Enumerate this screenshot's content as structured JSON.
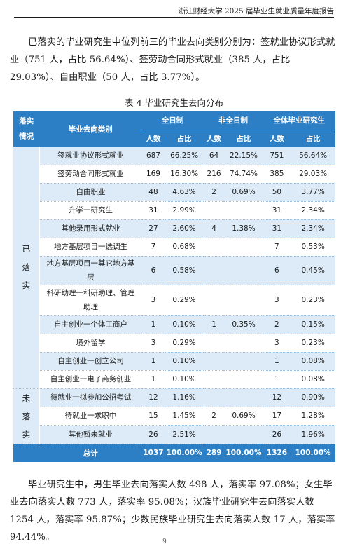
{
  "header": {
    "title": "浙江财经大学 2025 届毕业生就业质量年度报告"
  },
  "intro": "已落实的毕业研究生中位列前三的毕业去向类别分别为：签就业协议形式就业（751 人，占比 56.64%）、签劳动合同形式就业（385 人，占比 29.03%）、自由职业（50 人，占比 3.77%）。",
  "table": {
    "caption": "表 4 毕业研究生去向分布",
    "headers": {
      "status": "落实\n情况",
      "category": "毕业去向类别",
      "fulltime": "全日制",
      "parttime": "非全日制",
      "all": "全体毕业研究生",
      "count": "人数",
      "ratio": "占比"
    },
    "groups": [
      {
        "label": "已\n落\n实",
        "rows": [
          {
            "cat": "签就业协议形式就业",
            "ft_n": "687",
            "ft_p": "66.25%",
            "pt_n": "64",
            "pt_p": "22.15%",
            "all_n": "751",
            "all_p": "56.64%"
          },
          {
            "cat": "签劳动合同形式就业",
            "ft_n": "169",
            "ft_p": "16.30%",
            "pt_n": "216",
            "pt_p": "74.74%",
            "all_n": "385",
            "all_p": "29.03%"
          },
          {
            "cat": "自由职业",
            "ft_n": "48",
            "ft_p": "4.63%",
            "pt_n": "2",
            "pt_p": "0.69%",
            "all_n": "50",
            "all_p": "3.77%"
          },
          {
            "cat": "升学一研究生",
            "ft_n": "31",
            "ft_p": "2.99%",
            "pt_n": "",
            "pt_p": "",
            "all_n": "31",
            "all_p": "2.34%"
          },
          {
            "cat": "其他录用形式就业",
            "ft_n": "27",
            "ft_p": "2.60%",
            "pt_n": "4",
            "pt_p": "1.38%",
            "all_n": "31",
            "all_p": "2.34%"
          },
          {
            "cat": "地方基层项目一选调生",
            "ft_n": "7",
            "ft_p": "0.68%",
            "pt_n": "",
            "pt_p": "",
            "all_n": "7",
            "all_p": "0.53%"
          },
          {
            "cat": "地方基层项目一其它地方基层",
            "ft_n": "6",
            "ft_p": "0.58%",
            "pt_n": "",
            "pt_p": "",
            "all_n": "6",
            "all_p": "0.45%"
          },
          {
            "cat": "科研助理一科研助理、管理助理",
            "ft_n": "3",
            "ft_p": "0.29%",
            "pt_n": "",
            "pt_p": "",
            "all_n": "3",
            "all_p": "0.23%"
          },
          {
            "cat": "自主创业一个体工商户",
            "ft_n": "1",
            "ft_p": "0.10%",
            "pt_n": "1",
            "pt_p": "0.35%",
            "all_n": "2",
            "all_p": "0.15%"
          },
          {
            "cat": "境外留学",
            "ft_n": "3",
            "ft_p": "0.29%",
            "pt_n": "",
            "pt_p": "",
            "all_n": "3",
            "all_p": "0.23%"
          },
          {
            "cat": "自主创业一创立公司",
            "ft_n": "1",
            "ft_p": "0.10%",
            "pt_n": "",
            "pt_p": "",
            "all_n": "1",
            "all_p": "0.08%"
          },
          {
            "cat": "自主创业一电子商务创业",
            "ft_n": "1",
            "ft_p": "0.10%",
            "pt_n": "",
            "pt_p": "",
            "all_n": "1",
            "all_p": "0.08%"
          }
        ]
      },
      {
        "label": "未\n落\n实",
        "rows": [
          {
            "cat": "待就业一拟参加公招考试",
            "ft_n": "12",
            "ft_p": "1.16%",
            "pt_n": "",
            "pt_p": "",
            "all_n": "12",
            "all_p": "0.90%"
          },
          {
            "cat": "待就业一求职中",
            "ft_n": "15",
            "ft_p": "1.45%",
            "pt_n": "2",
            "pt_p": "0.69%",
            "all_n": "17",
            "all_p": "1.28%"
          },
          {
            "cat": "其他暂未就业",
            "ft_n": "26",
            "ft_p": "2.51%",
            "pt_n": "",
            "pt_p": "",
            "all_n": "26",
            "all_p": "1.96%"
          }
        ]
      }
    ],
    "total": {
      "label": "总计",
      "ft_n": "1037",
      "ft_p": "100.00%",
      "pt_n": "289",
      "pt_p": "100.00%",
      "all_n": "1326",
      "all_p": "100.00%"
    }
  },
  "summary": "毕业研究生中，男生毕业去向落实人数 498 人，落实率 97.08%；女生毕业去向落实人数 773 人，落实率 95.08%；汉族毕业研究生去向落实人数 1254 人，落实率 95.87%；少数民族毕业研究生去向落实人数 17 人，落实率 94.44%。",
  "page_number": "9",
  "colors": {
    "header_blue": "#2c7fc4",
    "row_tint": "#dcebf7"
  }
}
